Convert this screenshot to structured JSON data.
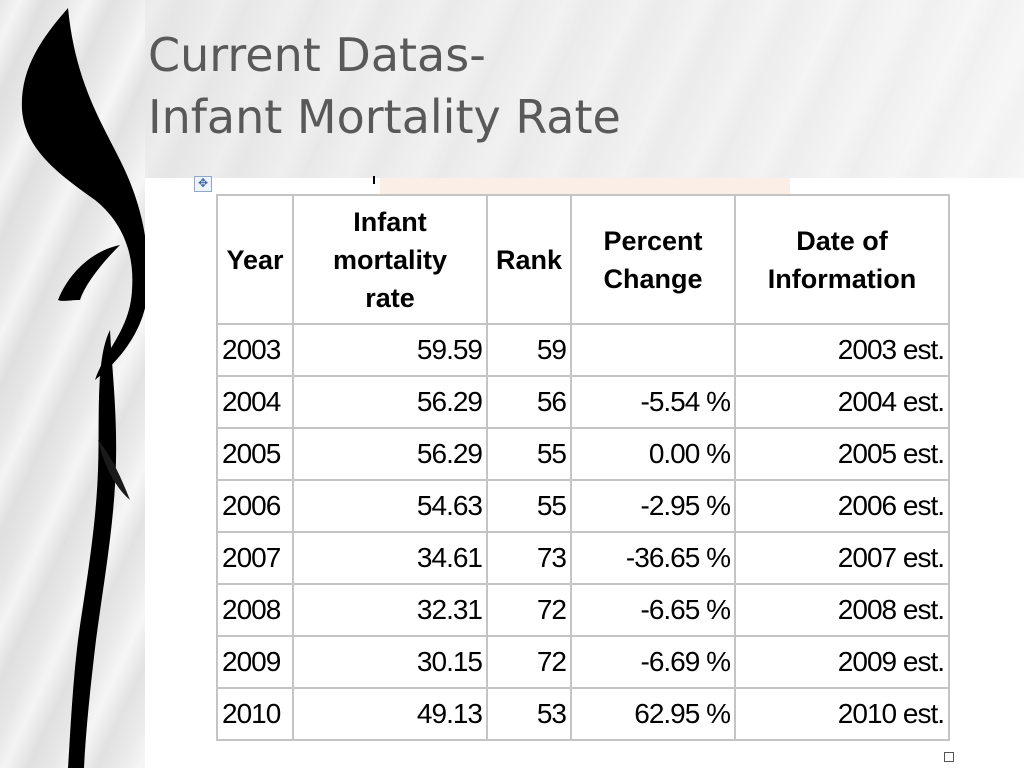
{
  "slide": {
    "title_line1": "Current Datas-",
    "title_line2": "Infant Mortality Rate"
  },
  "table": {
    "headers": {
      "year": "Year",
      "rate_line1": "Infant",
      "rate_line2": "mortality",
      "rate_line3": "rate",
      "rank": "Rank",
      "change_line1": "Percent",
      "change_line2": "Change",
      "date_line1": "Date of",
      "date_line2": "Information"
    },
    "rows": [
      {
        "year": "2003",
        "rate": "59.59",
        "rank": "59",
        "change": "",
        "date": "2003 est."
      },
      {
        "year": "2004",
        "rate": "56.29",
        "rank": "56",
        "change": "-5.54 %",
        "date": "2004 est."
      },
      {
        "year": "2005",
        "rate": "56.29",
        "rank": "55",
        "change": "0.00 %",
        "date": "2005 est."
      },
      {
        "year": "2006",
        "rate": "54.63",
        "rank": "55",
        "change": "-2.95 %",
        "date": "2006 est."
      },
      {
        "year": "2007",
        "rate": "34.61",
        "rank": "73",
        "change": "-36.65 %",
        "date": "2007 est."
      },
      {
        "year": "2008",
        "rate": "32.31",
        "rank": "72",
        "change": "-6.65 %",
        "date": "2008 est."
      },
      {
        "year": "2009",
        "rate": "30.15",
        "rank": "72",
        "change": "-6.69 %",
        "date": "2009 est."
      },
      {
        "year": "2010",
        "rate": "49.13",
        "rank": "53",
        "change": "62.95 %",
        "date": "2010 est."
      }
    ]
  },
  "icons": {
    "table_anchor": "move-handle-icon",
    "resize_handle": "resize-handle-icon"
  },
  "colors": {
    "title": "#595959",
    "grid": "#c4c4c4"
  }
}
